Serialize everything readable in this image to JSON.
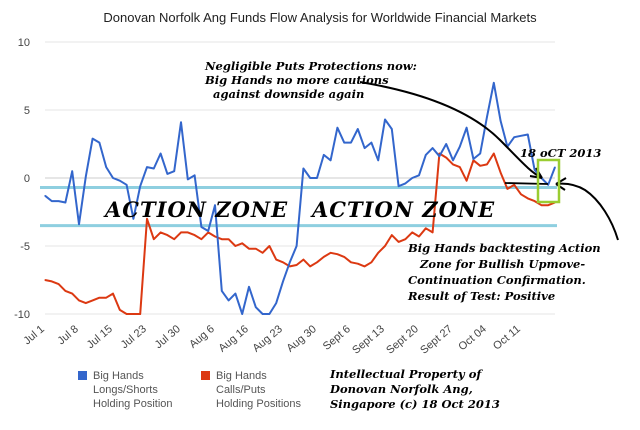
{
  "chart_data": {
    "type": "line",
    "title": "Donovan Norfolk Ang Funds Flow Analysis for Worldwide Financial Markets",
    "ylim": [
      -10,
      10
    ],
    "yticks": [
      10,
      5,
      0,
      -5,
      -10
    ],
    "x_tick_labels": [
      "Jul 1",
      "Jul 8",
      "Jul 15",
      "Jul 23",
      "Jul 30",
      "Aug 6",
      "Aug 16",
      "Aug 23",
      "Aug 30",
      "Sept 6",
      "Sept 13",
      "Sept 20",
      "Sept 27",
      "Oct 04",
      "Oct 11"
    ],
    "x_tick_index": [
      0,
      5,
      10,
      15,
      20,
      25,
      30,
      35,
      40,
      45,
      50,
      55,
      60,
      65,
      70
    ],
    "series": [
      {
        "name": "Big Hands Longs/Shorts Holding Position",
        "color": "#3366cc",
        "values": [
          -1.3,
          -1.7,
          -1.7,
          -1.8,
          0.5,
          -3.4,
          0.1,
          2.9,
          2.6,
          0.8,
          0.0,
          -0.2,
          -0.5,
          -3.0,
          -0.6,
          0.8,
          0.7,
          1.8,
          0.3,
          0.5,
          4.1,
          -0.1,
          0.2,
          -3.6,
          -3.9,
          -2.0,
          -8.3,
          -9.0,
          -8.5,
          -10.0,
          -8.0,
          -9.5,
          -10.0,
          -10.0,
          -9.2,
          -7.6,
          -6.2,
          -5.0,
          0.7,
          0.0,
          0.0,
          1.7,
          1.3,
          3.7,
          2.6,
          2.6,
          3.6,
          2.2,
          2.6,
          1.3,
          4.3,
          3.6,
          -0.6,
          -0.4,
          0.0,
          0.2,
          1.7,
          2.2,
          1.6,
          2.5,
          1.3,
          2.3,
          3.7,
          1.4,
          1.8,
          4.5,
          7.0,
          4.2,
          2.3,
          3.0,
          3.1,
          3.2,
          0.6,
          0.0,
          -0.5,
          0.8
        ]
      },
      {
        "name": "Big Hands Calls/Puts Holding Positions",
        "color": "#dc3912",
        "values": [
          -7.5,
          -7.6,
          -7.8,
          -8.3,
          -8.5,
          -9.0,
          -9.2,
          -9.0,
          -8.8,
          -8.8,
          -8.5,
          -9.7,
          -10.0,
          -10.0,
          -10.0,
          -3.0,
          -4.5,
          -4.0,
          -4.2,
          -4.5,
          -4.0,
          -4.0,
          -4.2,
          -4.5,
          -4.0,
          -4.3,
          -4.5,
          -4.5,
          -5.0,
          -4.8,
          -5.2,
          -5.2,
          -5.5,
          -5.0,
          -6.0,
          -6.2,
          -6.5,
          -6.4,
          -6.0,
          -6.5,
          -6.2,
          -5.8,
          -5.5,
          -5.6,
          -5.8,
          -6.2,
          -6.3,
          -6.5,
          -6.2,
          -5.5,
          -5.0,
          -4.2,
          -4.7,
          -4.5,
          -4.0,
          -4.3,
          -3.7,
          -4.0,
          1.8,
          1.5,
          1.0,
          0.8,
          -0.2,
          1.3,
          0.9,
          1.0,
          1.8,
          0.4,
          -0.8,
          -0.5,
          -1.2,
          -1.5,
          -1.7,
          -2.0,
          -2.0,
          -1.8
        ]
      }
    ],
    "zone_lines": [
      -0.7,
      -3.5
    ],
    "grid": "horizontal",
    "legend_position": "bottom-left"
  },
  "annotations": {
    "zone_label_1": "ACTION ZONE",
    "zone_label_2": "ACTION ZONE",
    "note_top": [
      "Negligible Puts Protections now:",
      "Big Hands no more cautions",
      "against downside again"
    ],
    "date_label": "18 oCT 2013",
    "note_bottom": [
      "Big Hands backtesting Action",
      "Zone for Bullish Upmove-",
      "Continuation Confirmation.",
      "Result of Test: Positive"
    ],
    "copyright": [
      "Intellectual Property of",
      "Donovan Norfolk Ang,",
      "Singapore (c) 18 Oct 2013"
    ],
    "highlight_color": "#9acd32",
    "zone_line_color": "#8ecfe0"
  },
  "legend": {
    "blue_lines": [
      "Big Hands",
      "Longs/Shorts",
      "Holding Position"
    ],
    "red_lines": [
      "Big Hands",
      "Calls/Puts",
      "Holding Positions"
    ]
  }
}
